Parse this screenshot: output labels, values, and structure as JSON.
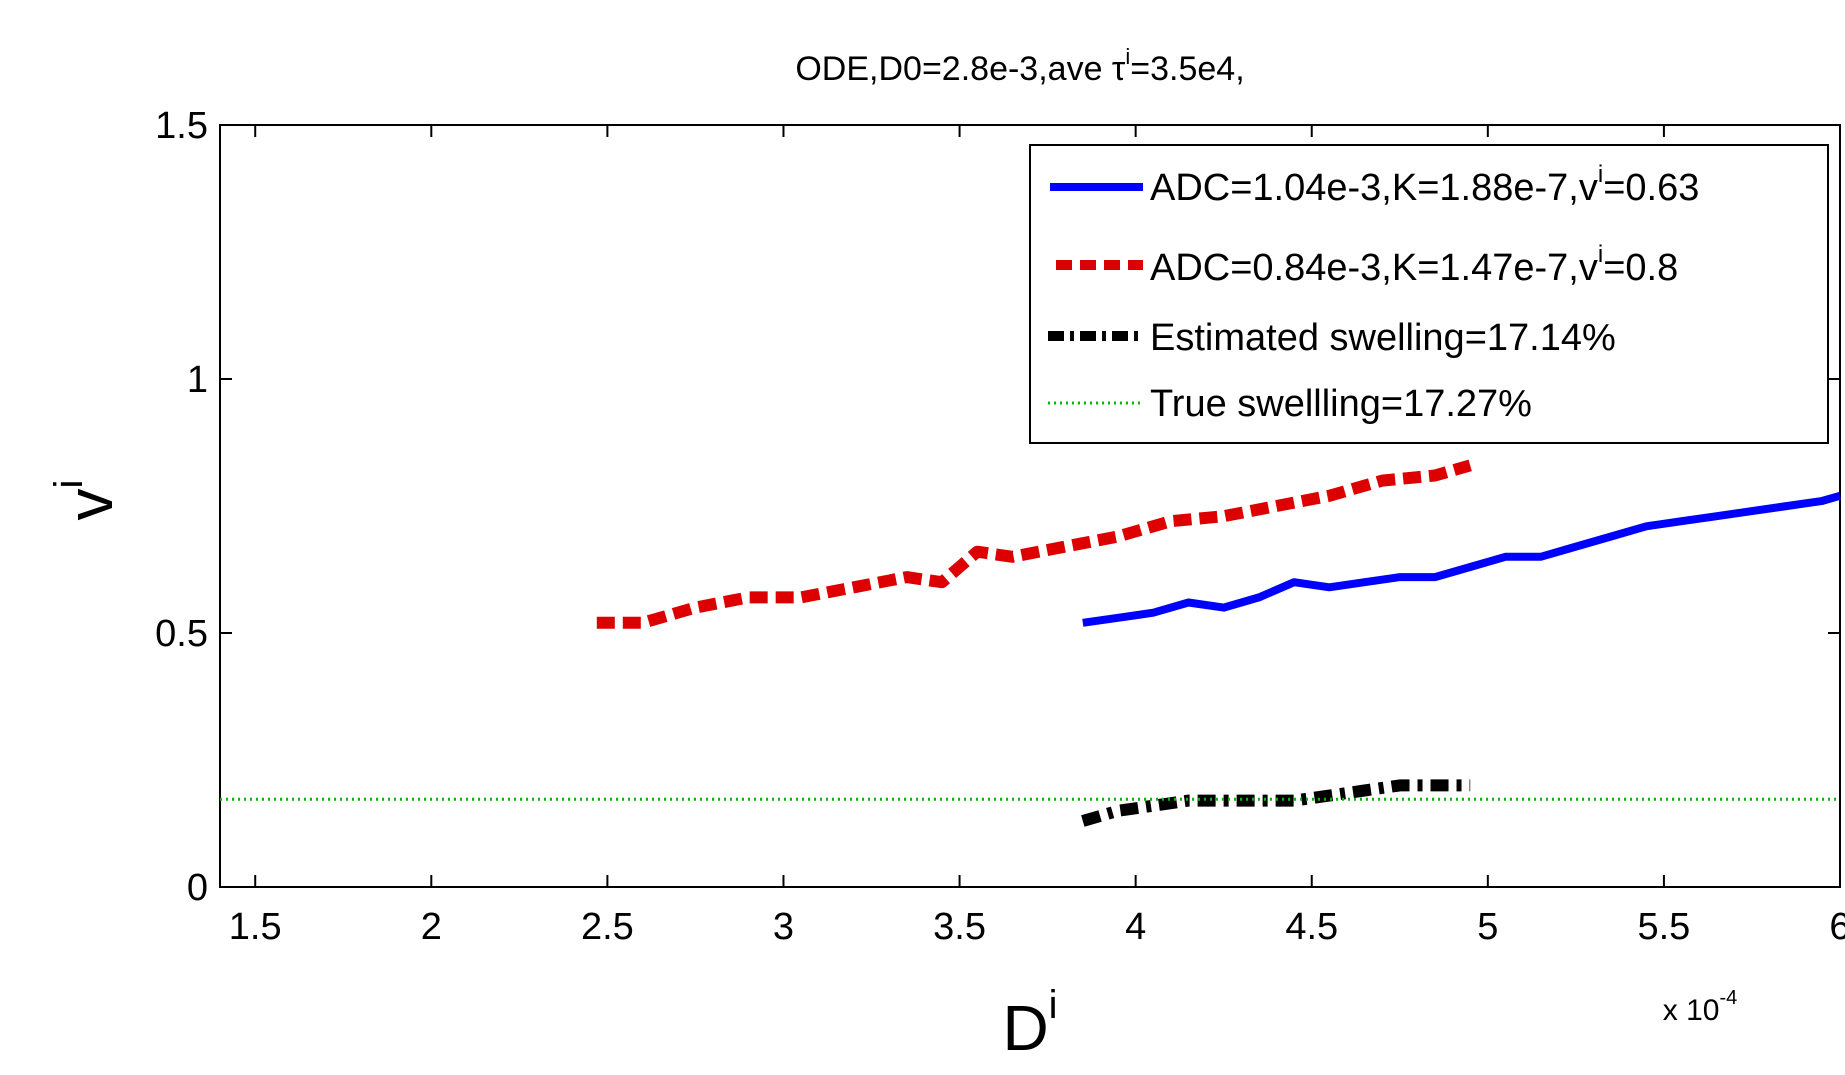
{
  "chart_data": {
    "type": "line",
    "title_prefix": "ODE,D0=2.8e-3,ave τ",
    "title_sup": "i",
    "title_suffix": "=3.5e4,",
    "xlabel": "D",
    "xlabel_sup": "i",
    "ylabel": "v",
    "ylabel_sup": "i",
    "x_multiplier": "x 10",
    "x_multiplier_exp": "-4",
    "xlim": [
      1.4,
      6.0
    ],
    "ylim": [
      0,
      1.5
    ],
    "xticks": [
      "1.5",
      "2",
      "2.5",
      "3",
      "3.5",
      "4",
      "4.5",
      "5",
      "5.5",
      "6"
    ],
    "xtick_values": [
      1.5,
      2,
      2.5,
      3,
      3.5,
      4,
      4.5,
      5,
      5.5,
      6
    ],
    "yticks": [
      "0",
      "0.5",
      "1",
      "1.5"
    ],
    "ytick_values": [
      0,
      0.5,
      1,
      1.5
    ],
    "grid": false,
    "legend_position": "top-right",
    "series": [
      {
        "name_prefix": "ADC=1.04e-3,K=1.88e-7,v",
        "name_sup": "i",
        "name_suffix": "=0.63",
        "color": "#0000ff",
        "style": "solid",
        "x": [
          3.85,
          3.95,
          4.05,
          4.15,
          4.25,
          4.35,
          4.45,
          4.55,
          4.65,
          4.75,
          4.85,
          4.95,
          5.05,
          5.15,
          5.25,
          5.35,
          5.45,
          5.55,
          5.65,
          5.75,
          5.85,
          5.95,
          6.0
        ],
        "y": [
          0.52,
          0.53,
          0.54,
          0.56,
          0.55,
          0.57,
          0.6,
          0.59,
          0.6,
          0.61,
          0.61,
          0.63,
          0.65,
          0.65,
          0.67,
          0.69,
          0.71,
          0.72,
          0.73,
          0.74,
          0.75,
          0.76,
          0.77
        ]
      },
      {
        "name_prefix": "ADC=0.84e-3,K=1.47e-7,v",
        "name_sup": "i",
        "name_suffix": "=0.8",
        "color": "#dd0000",
        "style": "dashed",
        "x": [
          2.47,
          2.6,
          2.75,
          2.9,
          3.05,
          3.2,
          3.35,
          3.45,
          3.55,
          3.65,
          3.8,
          3.95,
          4.1,
          4.25,
          4.4,
          4.55,
          4.7,
          4.85,
          4.95
        ],
        "y": [
          0.52,
          0.52,
          0.55,
          0.57,
          0.57,
          0.59,
          0.61,
          0.6,
          0.66,
          0.65,
          0.67,
          0.69,
          0.72,
          0.73,
          0.75,
          0.77,
          0.8,
          0.81,
          0.83
        ]
      },
      {
        "name": "Estimated swelling=17.14%",
        "color": "#000000",
        "style": "dashdot",
        "x": [
          3.85,
          3.95,
          4.05,
          4.15,
          4.25,
          4.35,
          4.45,
          4.55,
          4.65,
          4.75,
          4.85,
          4.95
        ],
        "y": [
          0.13,
          0.15,
          0.16,
          0.17,
          0.17,
          0.17,
          0.17,
          0.18,
          0.19,
          0.2,
          0.2,
          0.2
        ]
      },
      {
        "name": "True swellling=17.27%",
        "color": "#00bb00",
        "style": "dotted",
        "x": [
          1.4,
          6.0
        ],
        "y": [
          0.1727,
          0.1727
        ]
      }
    ]
  }
}
